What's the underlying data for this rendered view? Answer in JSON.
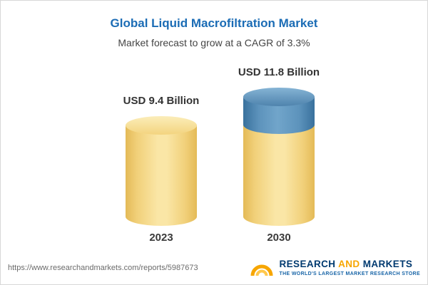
{
  "header": {
    "title": "Global Liquid Macrofiltration Market",
    "subtitle": "Market forecast to grow at a CAGR of 3.3%"
  },
  "chart_data": {
    "type": "bar",
    "bar_shape": "cylinder",
    "categories": [
      "2023",
      "2030"
    ],
    "values": [
      9.4,
      11.8
    ],
    "value_labels": [
      "USD 9.4 Billion",
      "USD 11.8 Billion"
    ],
    "unit": "USD Billion",
    "title": "Global Liquid Macrofiltration Market",
    "subtitle": "Market forecast to grow at a CAGR of 3.3%",
    "cagr_pct": 3.3,
    "ylim": [
      0,
      12
    ],
    "grid": false,
    "legend": false,
    "colors": {
      "bar_fill": "#F6DA8C",
      "bar_edge": "#E4BA57",
      "growth_cap_fill": "#5B92BB",
      "title_text": "#1B6CB5"
    }
  },
  "footer": {
    "url": "https://www.researchandmarkets.com/reports/5987673",
    "logo": {
      "word_research": "RESEARCH",
      "word_and": "AND",
      "word_markets": "MARKETS",
      "tagline": "THE WORLD'S LARGEST MARKET RESEARCH STORE"
    }
  }
}
